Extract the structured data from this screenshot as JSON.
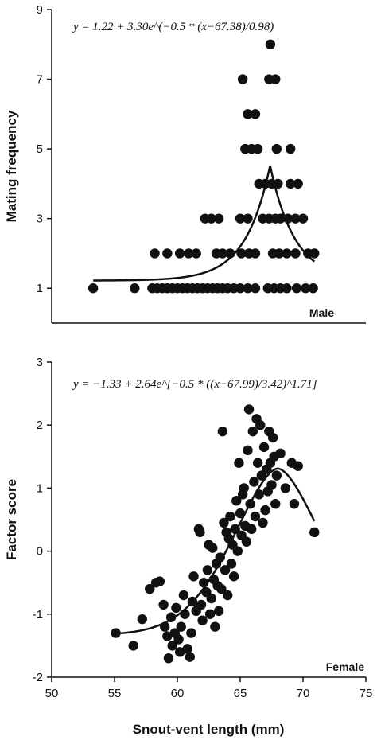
{
  "chart_data": [
    {
      "type": "scatter",
      "panel_label": "Male",
      "ylabel": "Mating frequency",
      "xlabel": "",
      "equation": "y = 1.22 + 3.30e^(−0.5 * (x−67.38)/0.98)",
      "xlim": [
        50,
        75
      ],
      "ylim": [
        0,
        9
      ],
      "x_ticks": [
        50,
        55,
        60,
        65,
        70,
        75
      ],
      "y_ticks": [
        1,
        3,
        5,
        7,
        9
      ],
      "fit_curve": {
        "a": 1.22,
        "b": 3.3,
        "x0": 67.38,
        "w": 0.98,
        "form": "peak-exponential"
      },
      "points": [
        [
          53.3,
          1
        ],
        [
          56.6,
          1
        ],
        [
          58.0,
          1
        ],
        [
          58.4,
          1
        ],
        [
          58.8,
          1
        ],
        [
          59.2,
          1
        ],
        [
          59.6,
          1
        ],
        [
          60.0,
          1
        ],
        [
          60.4,
          1
        ],
        [
          60.8,
          1
        ],
        [
          61.2,
          1
        ],
        [
          61.6,
          1
        ],
        [
          62.0,
          1
        ],
        [
          62.4,
          1
        ],
        [
          62.8,
          1
        ],
        [
          63.2,
          1
        ],
        [
          63.6,
          1
        ],
        [
          64.0,
          1
        ],
        [
          64.5,
          1
        ],
        [
          65.0,
          1
        ],
        [
          65.6,
          1
        ],
        [
          66.2,
          1
        ],
        [
          67.2,
          1
        ],
        [
          67.7,
          1
        ],
        [
          68.2,
          1
        ],
        [
          68.7,
          1
        ],
        [
          69.5,
          1
        ],
        [
          70.2,
          1
        ],
        [
          70.8,
          1
        ],
        [
          58.2,
          2
        ],
        [
          59.2,
          2
        ],
        [
          60.2,
          2
        ],
        [
          60.9,
          2
        ],
        [
          61.5,
          2
        ],
        [
          63.1,
          2
        ],
        [
          63.6,
          2
        ],
        [
          64.2,
          2
        ],
        [
          65.1,
          2
        ],
        [
          65.7,
          2
        ],
        [
          66.2,
          2
        ],
        [
          67.6,
          2
        ],
        [
          68.1,
          2
        ],
        [
          68.7,
          2
        ],
        [
          69.4,
          2
        ],
        [
          70.4,
          2
        ],
        [
          70.9,
          2
        ],
        [
          62.2,
          3
        ],
        [
          62.7,
          3
        ],
        [
          63.3,
          3
        ],
        [
          65.0,
          3
        ],
        [
          65.6,
          3
        ],
        [
          66.8,
          3
        ],
        [
          67.3,
          3
        ],
        [
          67.8,
          3
        ],
        [
          68.2,
          3
        ],
        [
          68.8,
          3
        ],
        [
          69.4,
          3
        ],
        [
          70.0,
          3
        ],
        [
          66.5,
          4
        ],
        [
          67.0,
          4
        ],
        [
          67.5,
          4
        ],
        [
          68.0,
          4
        ],
        [
          69.0,
          4
        ],
        [
          69.6,
          4
        ],
        [
          65.4,
          5
        ],
        [
          65.9,
          5
        ],
        [
          66.4,
          5
        ],
        [
          67.9,
          5
        ],
        [
          69.0,
          5
        ],
        [
          65.6,
          6
        ],
        [
          66.2,
          6
        ],
        [
          65.2,
          7
        ],
        [
          67.3,
          7
        ],
        [
          67.8,
          7
        ],
        [
          67.4,
          8
        ]
      ]
    },
    {
      "type": "scatter",
      "panel_label": "Female",
      "ylabel": "Factor score",
      "xlabel": "Snout-vent length (mm)",
      "equation": "y = −1.33 + 2.64e^[−0.5 * ((x−67.99)/3.42)^1.71]",
      "xlim": [
        50,
        75
      ],
      "ylim": [
        -2,
        3
      ],
      "x_ticks": [
        50,
        55,
        60,
        65,
        70,
        75
      ],
      "y_ticks": [
        -2,
        -1,
        0,
        1,
        2,
        3
      ],
      "fit_curve": {
        "a": -1.33,
        "b": 2.64,
        "x0": 67.99,
        "w": 3.42,
        "p": 1.71,
        "form": "generalized-gaussian"
      },
      "points": [
        [
          55.1,
          -1.3
        ],
        [
          56.5,
          -1.5
        ],
        [
          57.2,
          -1.08
        ],
        [
          57.8,
          -0.6
        ],
        [
          58.3,
          -0.5
        ],
        [
          58.6,
          -0.48
        ],
        [
          58.9,
          -0.85
        ],
        [
          59.0,
          -1.2
        ],
        [
          59.2,
          -1.35
        ],
        [
          59.3,
          -1.7
        ],
        [
          59.5,
          -1.05
        ],
        [
          59.6,
          -1.5
        ],
        [
          59.8,
          -1.3
        ],
        [
          59.9,
          -0.9
        ],
        [
          60.1,
          -1.4
        ],
        [
          60.2,
          -1.6
        ],
        [
          60.3,
          -1.2
        ],
        [
          60.5,
          -0.7
        ],
        [
          60.6,
          -1.0
        ],
        [
          60.8,
          -1.55
        ],
        [
          61.0,
          -1.68
        ],
        [
          61.1,
          -1.3
        ],
        [
          61.2,
          -0.8
        ],
        [
          61.3,
          -0.4
        ],
        [
          61.5,
          -0.95
        ],
        [
          61.7,
          0.35
        ],
        [
          61.8,
          0.3
        ],
        [
          61.9,
          -0.85
        ],
        [
          62.0,
          -1.1
        ],
        [
          62.1,
          -0.5
        ],
        [
          62.3,
          -0.65
        ],
        [
          62.4,
          -0.3
        ],
        [
          62.5,
          0.1
        ],
        [
          62.6,
          -1.0
        ],
        [
          62.7,
          -0.75
        ],
        [
          62.8,
          0.05
        ],
        [
          62.9,
          -0.45
        ],
        [
          63.0,
          -1.2
        ],
        [
          63.1,
          -0.2
        ],
        [
          63.2,
          -0.55
        ],
        [
          63.3,
          -0.95
        ],
        [
          63.4,
          -0.1
        ],
        [
          63.5,
          -0.6
        ],
        [
          63.6,
          1.9
        ],
        [
          63.7,
          0.45
        ],
        [
          63.8,
          -0.3
        ],
        [
          63.9,
          0.3
        ],
        [
          64.0,
          -0.7
        ],
        [
          64.1,
          0.2
        ],
        [
          64.2,
          0.55
        ],
        [
          64.3,
          -0.2
        ],
        [
          64.4,
          0.1
        ],
        [
          64.5,
          -0.4
        ],
        [
          64.6,
          0.35
        ],
        [
          64.7,
          0.8
        ],
        [
          64.8,
          0.0
        ],
        [
          64.9,
          1.4
        ],
        [
          65.0,
          0.6
        ],
        [
          65.1,
          0.25
        ],
        [
          65.2,
          0.9
        ],
        [
          65.3,
          1.0
        ],
        [
          65.4,
          0.4
        ],
        [
          65.5,
          0.15
        ],
        [
          65.6,
          1.6
        ],
        [
          65.7,
          2.25
        ],
        [
          65.8,
          0.75
        ],
        [
          65.9,
          0.35
        ],
        [
          66.0,
          1.9
        ],
        [
          66.1,
          1.1
        ],
        [
          66.2,
          0.55
        ],
        [
          66.3,
          2.1
        ],
        [
          66.4,
          1.4
        ],
        [
          66.5,
          0.9
        ],
        [
          66.6,
          2.0
        ],
        [
          66.7,
          1.2
        ],
        [
          66.8,
          0.45
        ],
        [
          66.9,
          1.65
        ],
        [
          67.0,
          0.65
        ],
        [
          67.1,
          1.3
        ],
        [
          67.2,
          0.95
        ],
        [
          67.3,
          1.9
        ],
        [
          67.4,
          1.4
        ],
        [
          67.5,
          1.05
        ],
        [
          67.6,
          1.8
        ],
        [
          67.7,
          1.5
        ],
        [
          67.8,
          0.75
        ],
        [
          67.9,
          1.2
        ],
        [
          68.2,
          1.55
        ],
        [
          68.6,
          1.0
        ],
        [
          69.1,
          1.4
        ],
        [
          69.3,
          0.75
        ],
        [
          69.6,
          1.35
        ],
        [
          70.9,
          0.3
        ]
      ]
    }
  ]
}
